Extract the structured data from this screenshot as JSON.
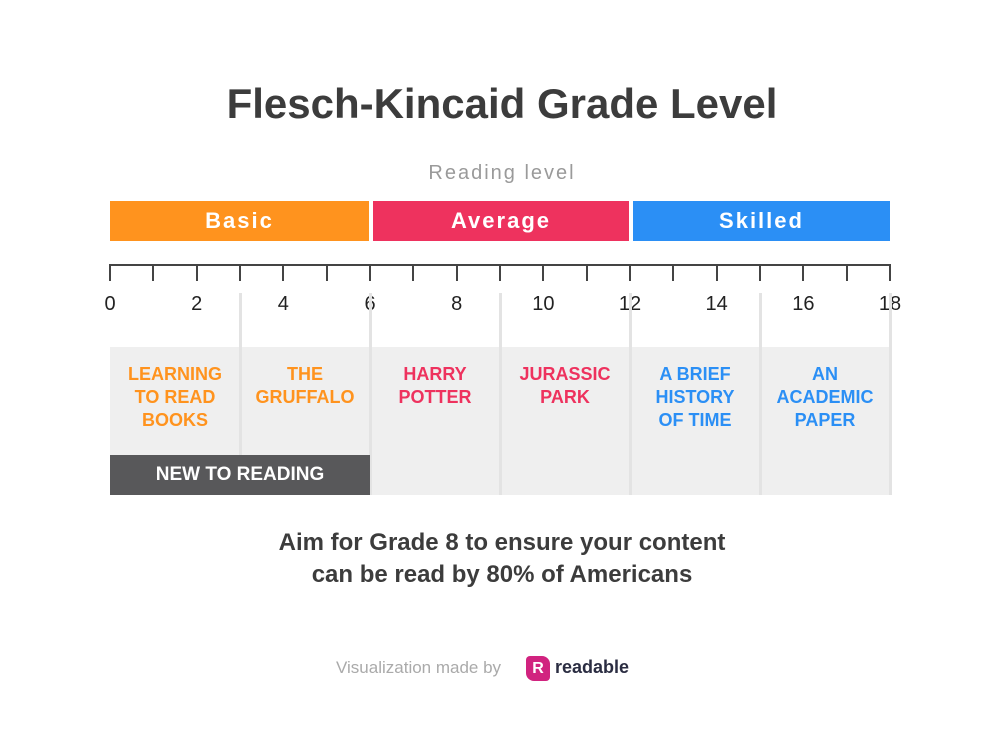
{
  "title": "Flesch-Kincaid Grade Level",
  "subtitle": "Reading level",
  "bands": [
    {
      "label": "Basic",
      "from": 0,
      "to": 6,
      "color": "#FF931E"
    },
    {
      "label": "Average",
      "from": 6,
      "to": 12,
      "color": "#EE325E"
    },
    {
      "label": "Skilled",
      "from": 12,
      "to": 18,
      "color": "#2B8FF5"
    }
  ],
  "scale": {
    "min": 0,
    "max": 18,
    "tick_labels": [
      "0",
      "2",
      "4",
      "6",
      "8",
      "10",
      "12",
      "14",
      "16",
      "18"
    ]
  },
  "columns": [
    {
      "lines": [
        "LEARNING",
        "TO READ",
        "BOOKS"
      ],
      "from": 0,
      "to": 3,
      "color": "#FF931E"
    },
    {
      "lines": [
        "THE",
        "GRUFFALO"
      ],
      "from": 3,
      "to": 6,
      "color": "#FF931E"
    },
    {
      "lines": [
        "HARRY",
        "POTTER"
      ],
      "from": 6,
      "to": 9,
      "color": "#EE325E"
    },
    {
      "lines": [
        "JURASSIC",
        "PARK"
      ],
      "from": 9,
      "to": 12,
      "color": "#EE325E"
    },
    {
      "lines": [
        "A BRIEF",
        "HISTORY",
        "OF TIME"
      ],
      "from": 12,
      "to": 15,
      "color": "#2B8FF5"
    },
    {
      "lines": [
        "AN",
        "ACADEMIC",
        "PAPER"
      ],
      "from": 15,
      "to": 18,
      "color": "#2B8FF5"
    }
  ],
  "new_to_reading": {
    "label": "NEW TO READING",
    "from": 0,
    "to": 6
  },
  "aim": {
    "line1": "Aim for Grade 8 to ensure your content",
    "line2": "can be read by 80% of Americans"
  },
  "footer": {
    "credit": "Visualization made by",
    "logo_letter": "R",
    "brand": "readable"
  }
}
